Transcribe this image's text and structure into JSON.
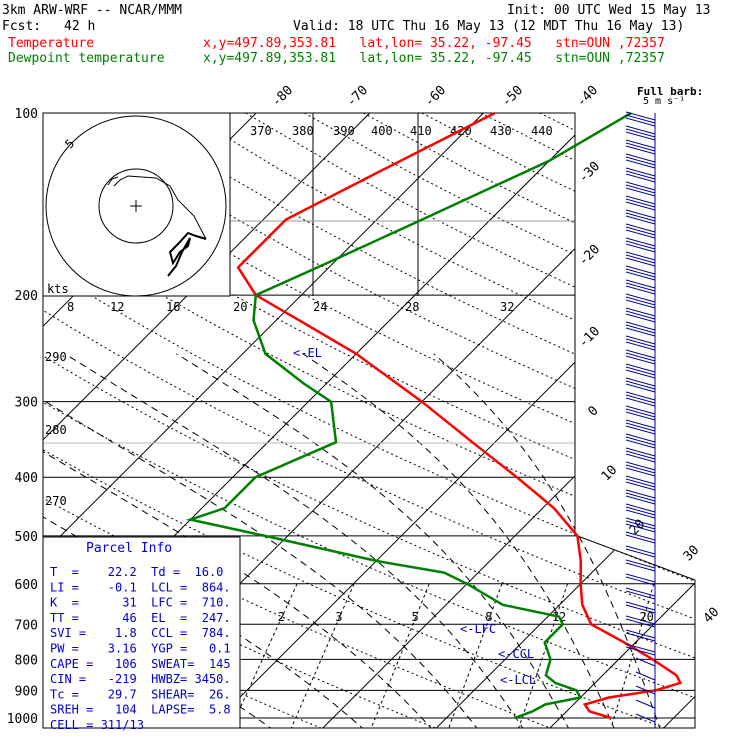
{
  "header": {
    "model": "3km ARW-WRF -- NCAR/MMM",
    "init": "Init: 00 UTC Wed 15 May 13",
    "fcst_label": "Fcst:",
    "fcst_value": "42 h",
    "valid": "Valid: 18 UTC Thu 16 May 13 (12 MDT Thu 16 May 13)",
    "temp_label": "Temperature",
    "temp_info": "x,y=497.89,353.81   lat,lon= 35.22, -97.45   stn=OUN ,72357",
    "dew_label": "Dewpoint temperature",
    "dew_info": "x,y=497.89,353.81   lat,lon= 35.22, -97.45   stn=OUN ,72357",
    "barb_title": "Full barb:",
    "barb_unit": "5 m s⁻¹"
  },
  "colors": {
    "temperature": "#ff0000",
    "dewpoint": "#008000",
    "info": "#0000cc",
    "barbs": "#000099"
  },
  "parcel": {
    "title": "Parcel Info",
    "rows": [
      "T  =    22.2  Td =  16.0",
      "LI =    -0.1  LCL =  864.",
      "K  =      31  LFC =  710.",
      "TT =      46  EL  =  247.",
      "SVI =    1.8  CCL =  784.",
      "PW =    3.16  YGP =   0.1",
      "CAPE =   106  SWEAT=  145",
      "CIN =   -219  HWBZ= 3450.",
      "Tc =    29.7  SHEAR=  26.",
      "SREH =   104  LAPSE=  5.8",
      "CELL = 311/13"
    ]
  },
  "chart_data": {
    "type": "line",
    "title": "",
    "ylabel": "",
    "pressure_ticks": [
      "100",
      "200",
      "300",
      "400",
      "500",
      "600",
      "700",
      "800",
      "900",
      "1000"
    ],
    "pressure_values": [
      100,
      200,
      300,
      400,
      500,
      600,
      700,
      800,
      900,
      1000
    ],
    "isotherm_labels": [
      "-80",
      "-70",
      "-60",
      "-50",
      "-40",
      "-30",
      "-20",
      "-10",
      "0",
      "10",
      "20",
      "30",
      "40"
    ],
    "theta_labels": [
      "370",
      "380",
      "390",
      "400",
      "410",
      "420",
      "430",
      "440"
    ],
    "theta_side_labels": [
      "290",
      "280",
      "270"
    ],
    "mixing_ratio_labels": [
      "2",
      "3",
      "5",
      "8",
      "12",
      "20"
    ],
    "hodograph": {
      "unit_label": "kts",
      "ring_label": "5",
      "speed_ticks": [
        "8",
        "12",
        "16",
        "20",
        "24",
        "28",
        "32"
      ]
    },
    "level_markers": [
      "<-EL",
      "<-LFC",
      "<-CCL",
      "<-LCL"
    ],
    "series": [
      {
        "name": "Temperature",
        "p": [
          1000,
          975,
          950,
          925,
          900,
          875,
          850,
          800,
          750,
          700,
          650,
          600,
          550,
          500,
          450,
          400,
          350,
          300,
          250,
          220,
          200,
          180,
          150,
          125,
          100
        ],
        "t": [
          24.5,
          22,
          21,
          22.5,
          26,
          27.5,
          26.5,
          23,
          19,
          14.5,
          12,
          10,
          8,
          5.5,
          1,
          -5,
          -12,
          -20,
          -30,
          -38,
          -44,
          -48,
          -48,
          -44,
          -39
        ]
      },
      {
        "name": "Dewpoint temperature",
        "p": [
          1000,
          975,
          950,
          925,
          900,
          875,
          850,
          800,
          750,
          700,
          680,
          650,
          600,
          575,
          550,
          500,
          470,
          450,
          430,
          400,
          350,
          300,
          280,
          250,
          220,
          200,
          180,
          150,
          120,
          100
        ],
        "td": [
          16,
          17,
          17.5,
          20,
          19,
          16.5,
          15,
          14,
          12,
          12,
          11,
          5,
          0,
          -3,
          -10,
          -22,
          -30,
          -28,
          -28,
          -28,
          -24,
          -28,
          -32,
          -38,
          -42,
          -44,
          -41,
          -36,
          -30,
          -27
        ]
      }
    ],
    "wind_barbs_full_barb_ms": 5
  }
}
